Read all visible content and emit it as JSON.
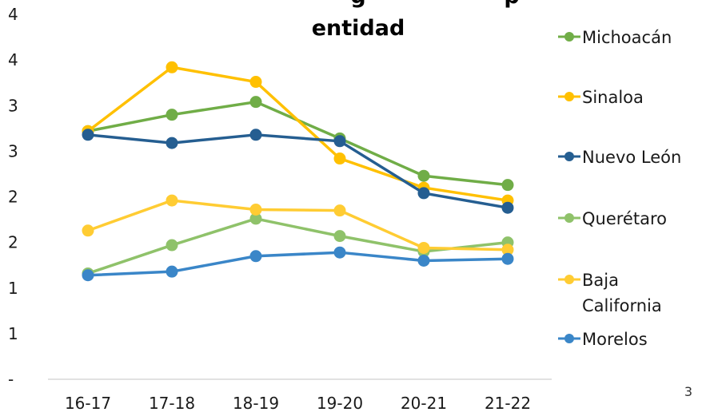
{
  "chart_data": {
    "type": "line",
    "title_line1": "...g... entidad ...p...",
    "title_visible_top": "g",
    "title_visible_top_right": "p",
    "title_line2": "entidad",
    "categories": [
      "16-17",
      "17-18",
      "18-19",
      "19-20",
      "20-21",
      "21-22"
    ],
    "y_tick_labels": [
      "-",
      "1",
      "1",
      "2",
      "2",
      "3",
      "3",
      "4",
      "4"
    ],
    "ylim": [
      0,
      4
    ],
    "grid": false,
    "legend_position": "right",
    "series": [
      {
        "name": "Michoacán",
        "color": "#70AD47",
        "values": [
          2.72,
          2.9,
          3.04,
          2.64,
          2.23,
          2.13
        ]
      },
      {
        "name": "Sinaloa",
        "color": "#FFC000",
        "values": [
          2.72,
          3.42,
          3.26,
          2.42,
          2.1,
          1.96
        ]
      },
      {
        "name": "Nuevo León",
        "color": "#255E91",
        "values": [
          2.68,
          2.59,
          2.68,
          2.61,
          2.04,
          1.88
        ]
      },
      {
        "name": "Querétaro",
        "color": "#8FC26A",
        "values": [
          1.16,
          1.47,
          1.76,
          1.57,
          1.4,
          1.5
        ]
      },
      {
        "name": "Baja California",
        "color": "#FFCC33",
        "values": [
          1.63,
          1.96,
          1.86,
          1.85,
          1.44,
          1.42
        ]
      },
      {
        "name": "Morelos",
        "color": "#3A86C8",
        "values": [
          1.14,
          1.18,
          1.35,
          1.39,
          1.3,
          1.32
        ]
      }
    ]
  },
  "page_number": "3"
}
